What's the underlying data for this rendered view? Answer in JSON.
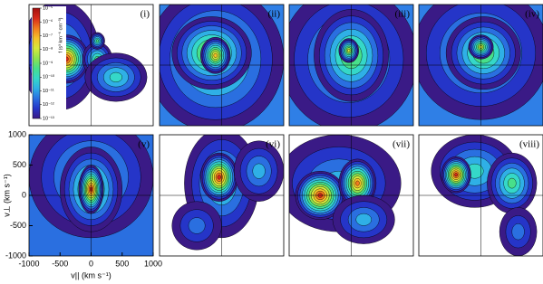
{
  "chart_data": {
    "type": "contour",
    "panels": [
      "(i)",
      "(ii)",
      "(iii)",
      "(iv)",
      "(v)",
      "(vi)",
      "(vii)",
      "(viii)"
    ],
    "xlabel": "v|| (km s⁻¹)",
    "ylabel": "v⊥ (km s⁻¹)",
    "xlim": [
      -1000,
      1000
    ],
    "xticks": [
      -1000,
      -500,
      0,
      500,
      1000
    ],
    "ylim": [
      -1000,
      1000
    ],
    "yticks": [
      -1000,
      -500,
      0,
      500,
      1000
    ],
    "colorbar": {
      "label": "f (s³ km⁻⁶ cm⁻³)",
      "log": true,
      "lim": [
        1e-13,
        1e-05
      ],
      "ticks": [
        {
          "value": 1e-05,
          "label": "10⁻⁵"
        },
        {
          "value": 1e-06,
          "label": "10⁻⁶"
        },
        {
          "value": 1e-07,
          "label": "10⁻⁷"
        },
        {
          "value": 1e-08,
          "label": "10⁻⁸"
        },
        {
          "value": 1e-09,
          "label": "10⁻⁹"
        },
        {
          "value": 1e-10,
          "label": "10⁻¹⁰"
        },
        {
          "value": 1e-11,
          "label": "10⁻¹¹"
        },
        {
          "value": 1e-12,
          "label": "10⁻¹²"
        },
        {
          "value": 1e-13,
          "label": "10⁻¹³"
        }
      ]
    }
  }
}
